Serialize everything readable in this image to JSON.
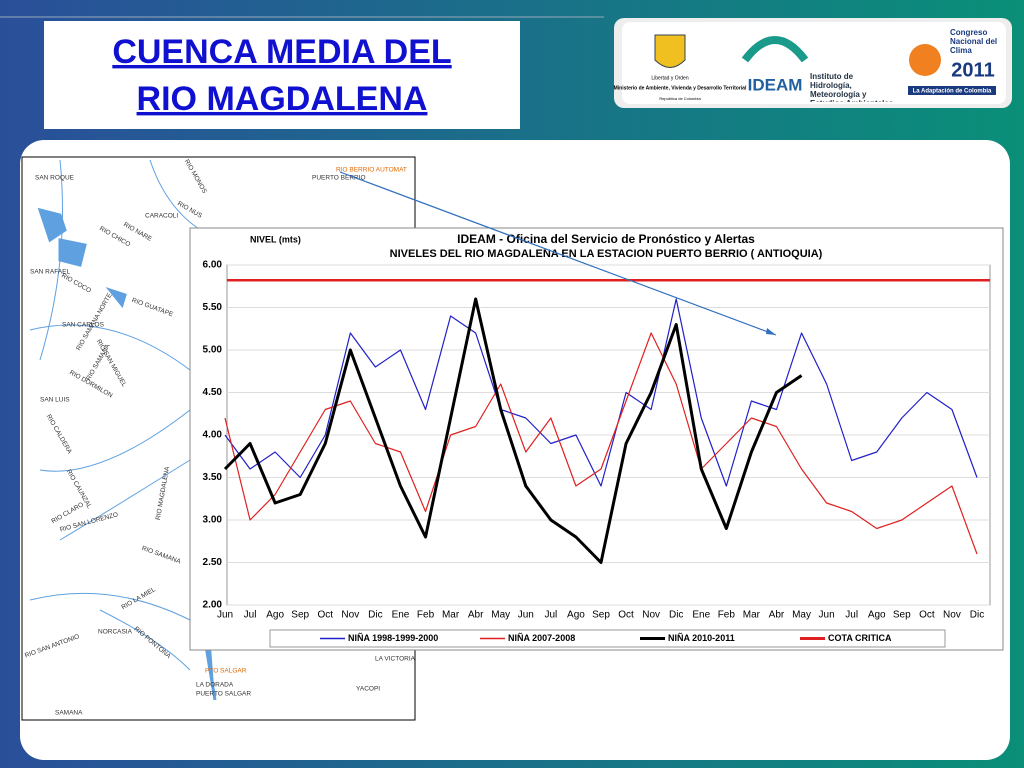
{
  "slide": {
    "title_line1": "CUENCA  MEDIA DEL",
    "title_line2": "RIO  MAGDALENA"
  },
  "logos": {
    "ministry_motto": "Libertad y Orden",
    "ministry": "Ministerio de Ambiente, Vivienda y Desarrollo Territorial",
    "ministry_country": "República de Colombia",
    "ideam": "IDEAM",
    "ideam_full": "Instituto de Hidrología, Meteorología y Estudios Ambientales",
    "congress": "Congreso Nacional del Clima",
    "congress_year": "2011",
    "congress_tagline": "La Adaptación de Colombia"
  },
  "map": {
    "labels": [
      "SAN ROQUE",
      "PUERTO BERRIO",
      "RIO BERRIO AUTOMAT",
      "RIO MONOS",
      "RIO NUS",
      "CARACOLI",
      "RIO NARE",
      "RIO CHICO",
      "SAN RAFAEL",
      "RIO COCO",
      "RIO GUATAPE",
      "RIO SAMANA NORTE",
      "SAN CARLOS",
      "RIO SAMANA",
      "RIO SAN MIGUEL",
      "RIO DORMILON",
      "SAN LUIS",
      "RIO CALDERA",
      "RIO CLARO",
      "RIO SAN LORENZO",
      "RIO CAUNZAL",
      "RIO MAGDALENA",
      "RIO SAMANA",
      "RIO LA MIEL",
      "NORCASIA",
      "RIO PONTONA",
      "RIO SAN ANTONIO",
      "SAMANA",
      "PTO SALGAR",
      "LA DORADA",
      "PUERTO SALGAR",
      "LA VICTORIA",
      "YACOPI"
    ]
  },
  "chart_data": {
    "type": "line",
    "title": "IDEAM - Oficina del Servicio de Pronóstico y Alertas",
    "subtitle": "NIVELES DEL RIO MAGDALENA EN LA ESTACION PUERTO BERRIO ( ANTIOQUIA)",
    "y_label": "NIVEL (mts)",
    "categories": [
      "Jun",
      "Jul",
      "Ago",
      "Sep",
      "Oct",
      "Nov",
      "Dic",
      "Ene",
      "Feb",
      "Mar",
      "Abr",
      "May",
      "Jun",
      "Jul",
      "Ago",
      "Sep",
      "Oct",
      "Nov",
      "Dic",
      "Ene",
      "Feb",
      "Mar",
      "Abr",
      "May",
      "Jun",
      "Jul",
      "Ago",
      "Sep",
      "Oct",
      "Nov",
      "Dic"
    ],
    "series": [
      {
        "name": "NIÑA 1998-1999-2000",
        "color": "#2020c8",
        "values": [
          4.0,
          3.6,
          3.8,
          3.5,
          4.0,
          5.2,
          4.8,
          5.0,
          4.3,
          5.4,
          5.2,
          4.3,
          4.2,
          3.9,
          4.0,
          3.4,
          4.5,
          4.3,
          5.6,
          4.2,
          3.4,
          4.4,
          4.3,
          5.2,
          4.6,
          3.7,
          3.8,
          4.2,
          4.5,
          4.3,
          3.5
        ]
      },
      {
        "name": "NIÑA 2007-2008",
        "color": "#e02020",
        "values": [
          4.2,
          3.0,
          3.3,
          3.8,
          4.3,
          4.4,
          3.9,
          3.8,
          3.1,
          4.0,
          4.1,
          4.6,
          3.8,
          4.2,
          3.4,
          3.6,
          4.4,
          5.2,
          4.6,
          3.6,
          3.9,
          4.2,
          4.1,
          3.6,
          3.2,
          3.1,
          2.9,
          3.0,
          3.2,
          3.4,
          2.6
        ]
      },
      {
        "name": "NIÑA 2010-2011",
        "color": "#000000",
        "values": [
          3.6,
          3.9,
          3.2,
          3.3,
          3.9,
          5.0,
          4.2,
          3.4,
          2.8,
          4.2,
          5.6,
          4.3,
          3.4,
          3.0,
          2.8,
          2.5,
          3.9,
          4.5,
          5.3,
          3.6,
          2.9,
          3.8,
          4.5,
          4.7,
          null,
          null,
          null,
          null,
          null,
          null,
          null
        ]
      }
    ],
    "reference": {
      "name": "COTA CRITICA",
      "color": "#e02020",
      "value": 5.82
    },
    "ylim": [
      2,
      6
    ],
    "yticks": [
      {
        "value": 2,
        "label": "2.00"
      },
      {
        "value": 2.5,
        "label": "2.50"
      },
      {
        "value": 3,
        "label": "3.00"
      },
      {
        "value": 3.5,
        "label": "3.50"
      },
      {
        "value": 4,
        "label": "4.00"
      },
      {
        "value": 4.5,
        "label": "4.50"
      },
      {
        "value": 5,
        "label": "5.00"
      },
      {
        "value": 5.5,
        "label": "5.50"
      },
      {
        "value": 6,
        "label": "6.00"
      }
    ],
    "grid": true
  }
}
